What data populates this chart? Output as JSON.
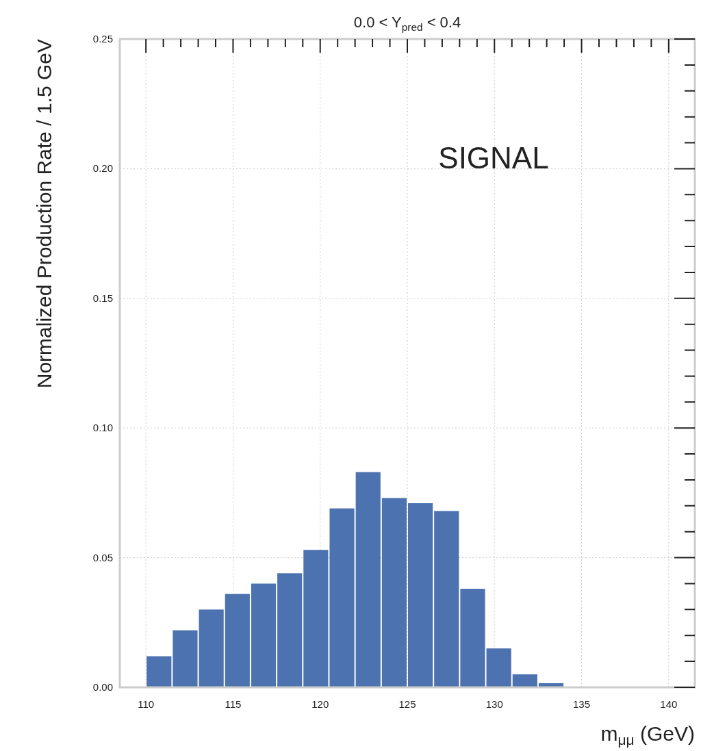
{
  "chart_data": {
    "type": "histogram",
    "title": "0.0 < Y$_{pred}$ < 0.4",
    "xlabel": "m$_{μμ}$ (GeV)",
    "ylabel": "Normalized Production Rate / 1.5 GeV",
    "bins": [
      110,
      111.5,
      113,
      114.5,
      116,
      117.5,
      119,
      120.5,
      122,
      123.5,
      125,
      126.5,
      128,
      129.5,
      131,
      132.5,
      134,
      135.5,
      137,
      138.5,
      140
    ],
    "values": [
      0.012,
      0.022,
      0.03,
      0.036,
      0.04,
      0.044,
      0.053,
      0.069,
      0.083,
      0.073,
      0.071,
      0.068,
      0.038,
      0.015,
      0.005,
      0.0016,
      0,
      0,
      0,
      0
    ],
    "color": "#4c72b0",
    "xlim": [
      108.5,
      141.5
    ],
    "xticks": [
      110,
      115,
      120,
      125,
      130,
      135,
      140
    ],
    "ylim": [
      0,
      0.25
    ],
    "yticks": [
      {
        "value": 0,
        "label": "0.00"
      },
      {
        "value": 0.05,
        "label": "0.05"
      },
      {
        "value": 0.1,
        "label": "0.10"
      },
      {
        "value": 0.15,
        "label": "0.15"
      },
      {
        "value": 0.2,
        "label": "0.20"
      },
      {
        "value": 0.25,
        "label": "0.25"
      }
    ],
    "grid": true,
    "annotations": [
      "SIGNAL"
    ]
  }
}
